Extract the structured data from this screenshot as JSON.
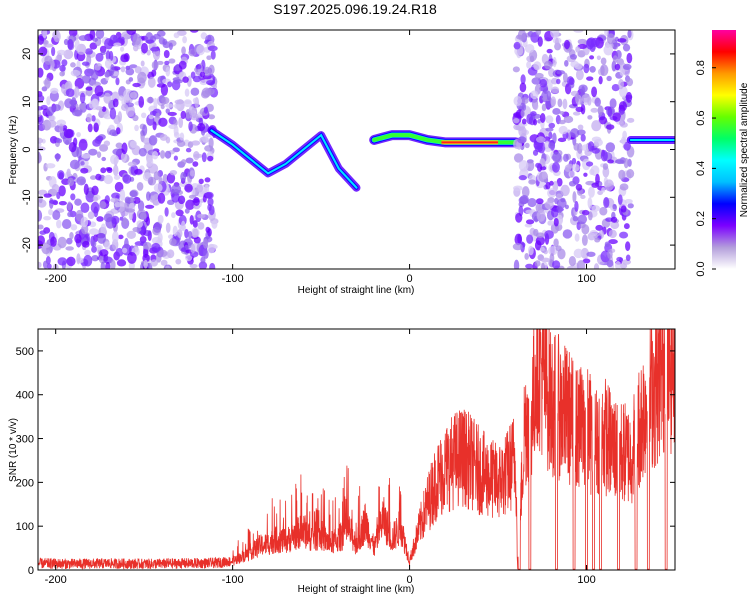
{
  "title": "S197.2025.096.19.24.R18",
  "chart_data": [
    {
      "type": "heatmap",
      "xlabel": "Height of straight line (km)",
      "ylabel": "Frequency (Hz)",
      "xlim": [
        -210,
        150
      ],
      "ylim": [
        -25,
        25
      ],
      "xticks": [
        -200,
        -100,
        0,
        100
      ],
      "yticks": [
        -20,
        -10,
        0,
        10,
        20
      ],
      "colorbar": {
        "label": "Normalized spectral amplitude",
        "range": [
          0,
          0.95
        ],
        "ticks": [
          0.0,
          0.2,
          0.4,
          0.6,
          0.8
        ],
        "colors": [
          "#ffffff",
          "#b39ddb",
          "#7b00ff",
          "#0000ff",
          "#00bfff",
          "#00ffff",
          "#00ff66",
          "#66ff00",
          "#ffff00",
          "#ff9900",
          "#ff0000",
          "#ff00a0"
        ]
      },
      "features": [
        {
          "name": "noise-left",
          "x_range": [
            -210,
            -110
          ],
          "freq_range": [
            -25,
            25
          ],
          "amplitude": 0.15
        },
        {
          "name": "track-descending",
          "x": [
            -112,
            -100,
            -90,
            -80,
            -70,
            -60,
            -50,
            -40,
            -30
          ],
          "freq": [
            4,
            1,
            -2,
            -5,
            -3,
            0,
            3,
            -4,
            -8
          ],
          "amplitude": 0.3
        },
        {
          "name": "track-main",
          "x": [
            -20,
            -10,
            0,
            10,
            20,
            35,
            50,
            60
          ],
          "freq": [
            2,
            3,
            3,
            2,
            1.5,
            1.5,
            1.5,
            1.5
          ],
          "amplitude": 0.85
        },
        {
          "name": "noise-right",
          "x_range": [
            60,
            125
          ],
          "freq_range": [
            -25,
            25
          ],
          "amplitude": 0.15
        },
        {
          "name": "track-right",
          "x": [
            125,
            135,
            150
          ],
          "freq": [
            2,
            2,
            2
          ],
          "amplitude": 0.2
        }
      ]
    },
    {
      "type": "line",
      "xlabel": "Height of straight line (km)",
      "ylabel": "SNR (10 * v/v)",
      "xlim": [
        -210,
        150
      ],
      "ylim": [
        0,
        550
      ],
      "xticks": [
        -200,
        -100,
        0,
        100
      ],
      "yticks": [
        0,
        100,
        200,
        300,
        400,
        500
      ],
      "color": "#e8302a",
      "series": [
        {
          "x": [
            -210,
            -190,
            -170,
            -150,
            -130,
            -110,
            -100,
            -95,
            -90,
            -85,
            -80,
            -75,
            -70,
            -65,
            -60,
            -55,
            -50,
            -45,
            -40,
            -35,
            -30,
            -25,
            -20,
            -15,
            -10,
            -5,
            0,
            5,
            10,
            15,
            20,
            25,
            30,
            35,
            40,
            45,
            50,
            55,
            60,
            61,
            65,
            70,
            72,
            75,
            80,
            85,
            90,
            95,
            100,
            105,
            110,
            115,
            120,
            125,
            130,
            135,
            140,
            145,
            150
          ],
          "y": [
            15,
            14,
            15,
            14,
            15,
            16,
            20,
            30,
            40,
            55,
            60,
            70,
            65,
            80,
            90,
            75,
            80,
            60,
            70,
            95,
            60,
            110,
            50,
            120,
            70,
            100,
            20,
            90,
            150,
            200,
            230,
            250,
            260,
            245,
            225,
            210,
            200,
            220,
            260,
            5,
            330,
            380,
            520,
            450,
            380,
            370,
            350,
            320,
            330,
            290,
            310,
            280,
            270,
            260,
            330,
            400,
            420,
            490,
            460
          ],
          "drops_to_zero_at": [
            62,
            68,
            83,
            93,
            100,
            104,
            108,
            118,
            128,
            135,
            145
          ]
        }
      ]
    }
  ]
}
